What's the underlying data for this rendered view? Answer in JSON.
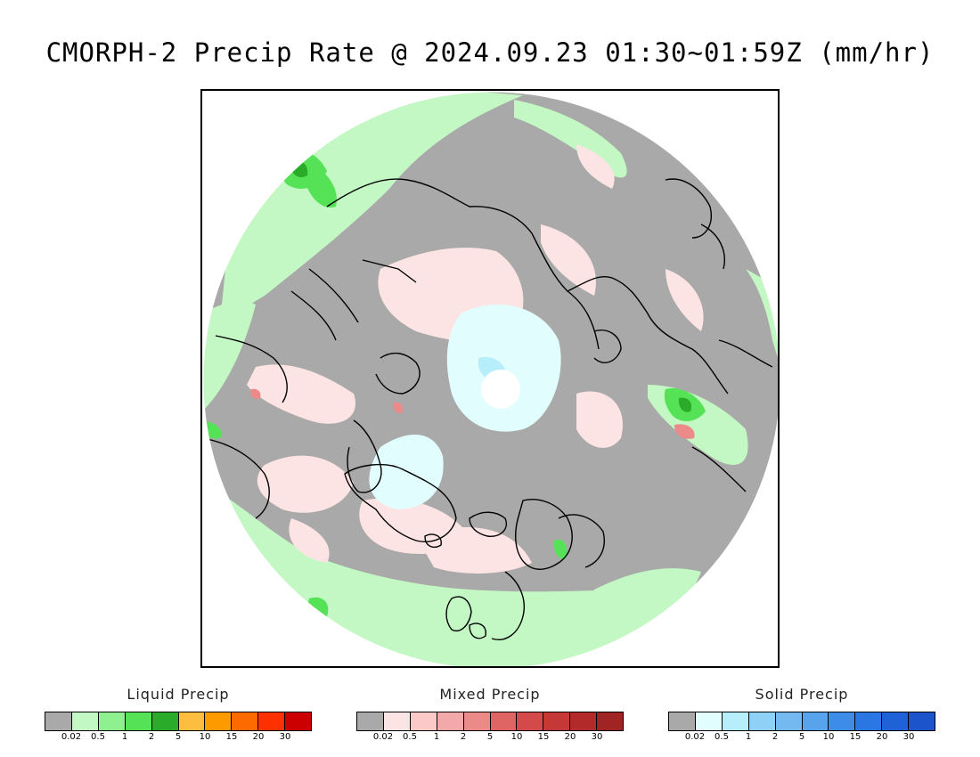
{
  "title": "CMORPH-2 Precip Rate @ 2024.09.23 01:30~01:59Z (mm/hr)",
  "map": {
    "projection": "north-polar-stereographic",
    "background_color": "#a9a9a9",
    "coastline_color": "#000000"
  },
  "legends": [
    {
      "title": "Liquid Precip",
      "colors": [
        "#a9a9a9",
        "#c3f7c3",
        "#8ff08f",
        "#56e256",
        "#2aac2a",
        "#fdbd3f",
        "#fd9a00",
        "#fd6a00",
        "#fd3000",
        "#cc0000"
      ],
      "ticks": [
        "0.02",
        "0.5",
        "1",
        "2",
        "5",
        "10",
        "15",
        "20",
        "30"
      ]
    },
    {
      "title": "Mixed Precip",
      "colors": [
        "#a9a9a9",
        "#fde4e4",
        "#fcc9c9",
        "#f3a9a9",
        "#ec8a8a",
        "#df6565",
        "#d44a4a",
        "#c43838",
        "#b32a2a",
        "#a02424"
      ],
      "ticks": [
        "0.02",
        "0.5",
        "1",
        "2",
        "5",
        "10",
        "15",
        "20",
        "30"
      ]
    },
    {
      "title": "Solid Precip",
      "colors": [
        "#a9a9a9",
        "#e2fdfd",
        "#b7eefc",
        "#8fd1f6",
        "#74b9f0",
        "#57a4ec",
        "#3d8ce8",
        "#2a76e2",
        "#1f62d8",
        "#1c54cc"
      ],
      "ticks": [
        "0.02",
        "0.5",
        "1",
        "2",
        "5",
        "10",
        "15",
        "20",
        "30"
      ]
    }
  ]
}
